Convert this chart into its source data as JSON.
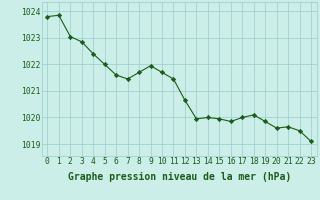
{
  "x": [
    0,
    1,
    2,
    3,
    4,
    5,
    6,
    7,
    8,
    9,
    10,
    11,
    12,
    13,
    14,
    15,
    16,
    17,
    18,
    19,
    20,
    21,
    22,
    23
  ],
  "y": [
    1023.8,
    1023.85,
    1023.05,
    1022.85,
    1022.4,
    1022.0,
    1021.6,
    1021.45,
    1021.7,
    1021.95,
    1021.7,
    1021.45,
    1020.65,
    1019.95,
    1020.0,
    1019.95,
    1019.85,
    1020.0,
    1020.1,
    1019.85,
    1019.6,
    1019.65,
    1019.5,
    1019.1
  ],
  "ylim": [
    1018.55,
    1024.35
  ],
  "yticks": [
    1019,
    1020,
    1021,
    1022,
    1023,
    1024
  ],
  "xticks": [
    0,
    1,
    2,
    3,
    4,
    5,
    6,
    7,
    8,
    9,
    10,
    11,
    12,
    13,
    14,
    15,
    16,
    17,
    18,
    19,
    20,
    21,
    22,
    23
  ],
  "line_color": "#1a5c1a",
  "marker_color": "#1a5c1a",
  "bg_color": "#cceee8",
  "grid_color": "#99cccc",
  "xlabel": "Graphe pression niveau de la mer (hPa)",
  "xlabel_color": "#1a5c1a",
  "tick_color": "#1a5c1a",
  "axis_label_fontsize": 7.0,
  "tick_fontsize": 5.8
}
